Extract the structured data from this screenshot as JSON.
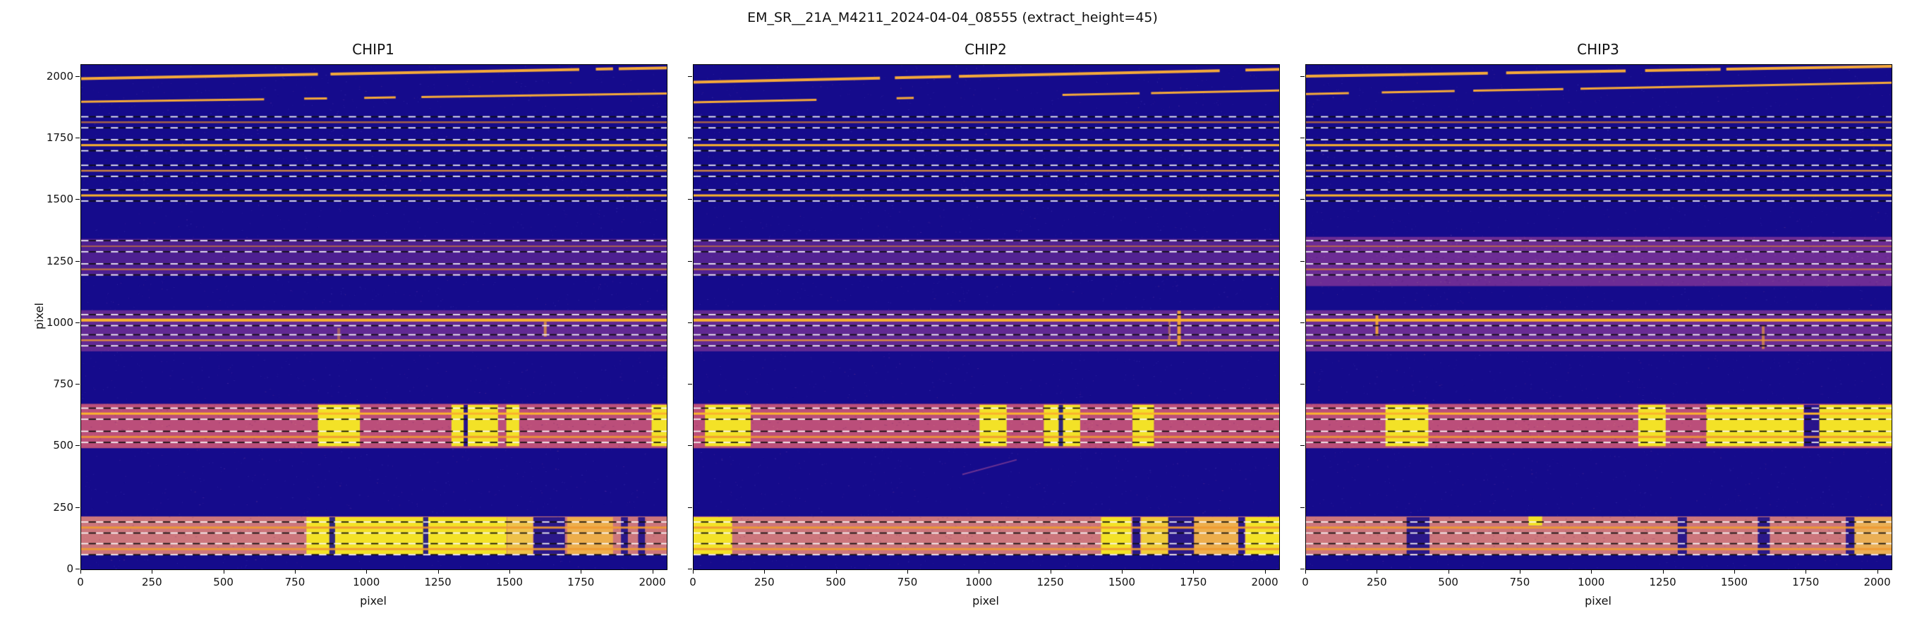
{
  "axis": {
    "xlabel": "pixel",
    "ylabel": "pixel",
    "xticks": [
      0,
      250,
      500,
      750,
      1000,
      1250,
      1500,
      1750,
      2000
    ],
    "yticks": [
      0,
      250,
      500,
      750,
      1000,
      1250,
      1500,
      1750,
      2000
    ],
    "xmax": 2048,
    "ymax": 2048
  },
  "chart_data": {
    "type": "heatmap",
    "title": "EM_SR__21A_M4211_2024-04-04_08555  (extract_height=45)",
    "colormap": "plasma",
    "extract_height": 45,
    "dash_len": 26,
    "xmax": 2048,
    "ymax": 2048,
    "colors": {
      "background": "#150b8c",
      "sky_line": "#f5a93a",
      "dash_white": "#f8f8f8",
      "dash_black": "#101010"
    },
    "orders": [
      {
        "y": 1815,
        "b": 0.45,
        "w": 2.5
      },
      {
        "y": 1722,
        "b": 0.95,
        "w": 3
      },
      {
        "y": 1618,
        "b": 0.6,
        "w": 2.5
      },
      {
        "y": 1518,
        "b": 0.95,
        "w": 3
      },
      {
        "y": 1312,
        "b": 0.3,
        "w": 2
      },
      {
        "y": 1218,
        "b": 0.45,
        "w": 2.5
      },
      {
        "y": 1012,
        "b": 1.0,
        "w": 4
      },
      {
        "y": 930,
        "b": 0.6,
        "w": 2.5
      },
      {
        "y": 632,
        "b": 0.9,
        "w": 3
      },
      {
        "y": 538,
        "b": 0.7,
        "w": 3
      },
      {
        "y": 170,
        "b": 0.75,
        "w": 3
      },
      {
        "y": 82,
        "b": 0.75,
        "w": 3
      }
    ],
    "panels": [
      {
        "title": "CHIP1",
        "seed": 11,
        "sky_lines": [
          {
            "y0": 1992,
            "y1": 2036,
            "w": 4,
            "gaps": [
              [
                828,
                872
              ],
              [
                1742,
                1800
              ],
              [
                1860,
                1880
              ]
            ]
          },
          {
            "y0": 1898,
            "y1": 1932,
            "w": 3,
            "gaps": [
              [
                640,
                780
              ],
              [
                860,
                990
              ],
              [
                1100,
                1190
              ]
            ]
          }
        ],
        "bands": [
          {
            "y0": 1192,
            "y1": 1342,
            "c": "#a8439b",
            "a": 0.38
          },
          {
            "y0": 885,
            "y1": 1052,
            "c": "#b0489a",
            "a": 0.5
          },
          {
            "y0": 492,
            "y1": 672,
            "c": "#d85a77",
            "a": 0.85
          },
          {
            "y0": 58,
            "y1": 215,
            "c": "#e0827a",
            "a": 0.9
          }
        ],
        "patches": [
          [
            828,
            975,
            500,
            668,
            "#f3e227"
          ],
          [
            1295,
            1338,
            500,
            668,
            "#f3e227"
          ],
          [
            1352,
            1458,
            500,
            668,
            "#f3e227"
          ],
          [
            1487,
            1532,
            500,
            668,
            "#f3e227"
          ],
          [
            1995,
            2048,
            500,
            668,
            "#f3e227"
          ],
          [
            788,
            1488,
            62,
            212,
            "#f3e227"
          ],
          [
            1490,
            1580,
            62,
            212,
            "#eec14a"
          ],
          [
            1700,
            1860,
            62,
            212,
            "#edae4c"
          ]
        ],
        "dark_cols": [
          [
            1338,
            1352,
            500,
            668
          ],
          [
            868,
            888,
            62,
            212
          ],
          [
            1582,
            1692,
            62,
            212
          ],
          [
            1888,
            1912,
            62,
            212
          ],
          [
            1948,
            1972,
            62,
            212
          ],
          [
            1196,
            1214,
            62,
            212
          ]
        ],
        "bright_cols": [
          [
            1618,
            1628,
            945,
            1005,
            "#e59a40",
            0.8
          ],
          [
            896,
            906,
            930,
            980,
            "#e59a40",
            0.5
          ]
        ],
        "streaks": []
      },
      {
        "title": "CHIP2",
        "seed": 22,
        "sky_lines": [
          {
            "y0": 1978,
            "y1": 2030,
            "w": 4,
            "gaps": [
              [
                652,
                704
              ],
              [
                900,
                928
              ],
              [
                1840,
                1930
              ]
            ]
          },
          {
            "y0": 1896,
            "y1": 1944,
            "w": 3,
            "gaps": [
              [
                430,
                710
              ],
              [
                770,
                1290
              ],
              [
                1560,
                1600
              ]
            ]
          }
        ],
        "bands": [
          {
            "y0": 1192,
            "y1": 1342,
            "c": "#a8439b",
            "a": 0.42
          },
          {
            "y0": 885,
            "y1": 1052,
            "c": "#b0489a",
            "a": 0.5
          },
          {
            "y0": 492,
            "y1": 672,
            "c": "#d85a77",
            "a": 0.85
          },
          {
            "y0": 58,
            "y1": 215,
            "c": "#e0827a",
            "a": 0.9
          }
        ],
        "patches": [
          [
            40,
            200,
            500,
            668,
            "#f3e227"
          ],
          [
            1000,
            1095,
            500,
            668,
            "#f3e227"
          ],
          [
            1225,
            1352,
            500,
            668,
            "#f3e227"
          ],
          [
            1535,
            1610,
            500,
            668,
            "#f3e227"
          ],
          [
            0,
            135,
            62,
            212,
            "#f3e227"
          ],
          [
            1425,
            1530,
            62,
            212,
            "#f3e227"
          ],
          [
            1565,
            1660,
            62,
            212,
            "#f0cc3a"
          ],
          [
            1750,
            1905,
            62,
            212,
            "#edae4c"
          ],
          [
            1930,
            2048,
            62,
            212,
            "#f3e227"
          ]
        ],
        "dark_cols": [
          [
            1277,
            1292,
            500,
            668
          ],
          [
            1535,
            1562,
            62,
            212
          ],
          [
            1660,
            1750,
            62,
            212
          ],
          [
            1905,
            1928,
            62,
            212
          ]
        ],
        "bright_cols": [
          [
            1692,
            1704,
            905,
            1050,
            "#f2a43c",
            0.95
          ],
          [
            1660,
            1668,
            930,
            1010,
            "#e59a40",
            0.5
          ]
        ],
        "streaks": [
          {
            "x0": 940,
            "y0": 385,
            "x1": 1130,
            "y1": 445,
            "c": "#c05a9a",
            "a": 0.5,
            "w": 2
          }
        ]
      },
      {
        "title": "CHIP3",
        "seed": 33,
        "sky_lines": [
          {
            "y0": 2002,
            "y1": 2042,
            "w": 4,
            "gaps": [
              [
                636,
                700
              ],
              [
                1118,
                1186
              ],
              [
                1450,
                1470
              ]
            ]
          },
          {
            "y0": 1930,
            "y1": 1976,
            "w": 3,
            "gaps": [
              [
                150,
                265
              ],
              [
                520,
                585
              ],
              [
                900,
                960
              ]
            ]
          }
        ],
        "bands": [
          {
            "y0": 1150,
            "y1": 1350,
            "c": "#a8439b",
            "a": 0.6
          },
          {
            "y0": 885,
            "y1": 1052,
            "c": "#b0489a",
            "a": 0.55
          },
          {
            "y0": 492,
            "y1": 672,
            "c": "#d85a77",
            "a": 0.85
          },
          {
            "y0": 58,
            "y1": 215,
            "c": "#e0827a",
            "a": 0.9
          }
        ],
        "patches": [
          [
            278,
            428,
            500,
            668,
            "#f3e227"
          ],
          [
            1162,
            1258,
            500,
            668,
            "#f3e227"
          ],
          [
            1400,
            1740,
            500,
            668,
            "#f3e227"
          ],
          [
            1795,
            2048,
            500,
            668,
            "#f3e227"
          ],
          [
            778,
            826,
            178,
            215,
            "#f3e227"
          ],
          [
            1915,
            2048,
            62,
            212,
            "#eaaf55"
          ]
        ],
        "dark_cols": [
          [
            1742,
            1795,
            500,
            668
          ],
          [
            352,
            432,
            62,
            212
          ],
          [
            1300,
            1332,
            62,
            212
          ],
          [
            1580,
            1622,
            62,
            212
          ],
          [
            1888,
            1918,
            62,
            212
          ]
        ],
        "bright_cols": [
          [
            243,
            253,
            948,
            1032,
            "#f2a43c",
            0.95
          ],
          [
            1594,
            1604,
            895,
            990,
            "#e59a40",
            0.7
          ]
        ],
        "streaks": []
      }
    ]
  }
}
